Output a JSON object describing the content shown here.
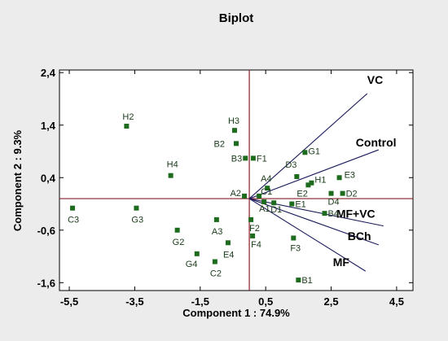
{
  "chart_data": {
    "type": "scatter",
    "title": "Biplot",
    "xlabel": "Component 1 : 74.9%",
    "ylabel": "Component 2 : 9.3%",
    "xlim": [
      -5.8,
      5.0
    ],
    "ylim": [
      -1.75,
      2.45
    ],
    "x_ticks": [
      -5.5,
      -3.5,
      -1.5,
      0.5,
      2.5,
      4.5
    ],
    "x_tick_labels": [
      "-5,5",
      "-3,5",
      "-1,5",
      "0,5",
      "2,5",
      "4,5"
    ],
    "y_ticks": [
      2.4,
      1.4,
      0.4,
      -0.6,
      -1.6
    ],
    "y_tick_labels": [
      "2,4",
      "1,4",
      "0,4",
      "-0,6",
      "-1,6"
    ],
    "grid": false,
    "origin": [
      0,
      0
    ],
    "scores": [
      {
        "label": "H2",
        "x": -3.75,
        "y": 1.38
      },
      {
        "label": "H3",
        "x": -0.45,
        "y": 1.3
      },
      {
        "label": "B2",
        "x": -0.4,
        "y": 1.05
      },
      {
        "label": "B3",
        "x": -0.12,
        "y": 0.77
      },
      {
        "label": "F1",
        "x": 0.12,
        "y": 0.77
      },
      {
        "label": "G1",
        "x": 1.7,
        "y": 0.88
      },
      {
        "label": "H4",
        "x": -2.4,
        "y": 0.44
      },
      {
        "label": "D3",
        "x": 1.45,
        "y": 0.42
      },
      {
        "label": "A4",
        "x": 0.55,
        "y": 0.2
      },
      {
        "label": "H1",
        "x": 1.9,
        "y": 0.3
      },
      {
        "label": "E3",
        "x": 2.75,
        "y": 0.4
      },
      {
        "label": "E2",
        "x": 1.8,
        "y": 0.26
      },
      {
        "label": "D4",
        "x": 2.5,
        "y": 0.1
      },
      {
        "label": "D2",
        "x": 2.85,
        "y": 0.1
      },
      {
        "label": "A2",
        "x": -0.15,
        "y": 0.05
      },
      {
        "label": "C1",
        "x": 0.3,
        "y": 0.05
      },
      {
        "label": "A1",
        "x": 0.45,
        "y": -0.06
      },
      {
        "label": "D1",
        "x": 0.75,
        "y": -0.08
      },
      {
        "label": "E1",
        "x": 1.3,
        "y": -0.1
      },
      {
        "label": "B4",
        "x": 2.3,
        "y": -0.28
      },
      {
        "label": "C3",
        "x": -5.4,
        "y": -0.18
      },
      {
        "label": "G3",
        "x": -3.45,
        "y": -0.18
      },
      {
        "label": "A3",
        "x": -1.0,
        "y": -0.4
      },
      {
        "label": "F2",
        "x": 0.05,
        "y": -0.4
      },
      {
        "label": "G2",
        "x": -2.2,
        "y": -0.6
      },
      {
        "label": "F4",
        "x": 0.1,
        "y": -0.71
      },
      {
        "label": "F3",
        "x": 1.35,
        "y": -0.75
      },
      {
        "label": "E4",
        "x": -0.65,
        "y": -0.84
      },
      {
        "label": "G4",
        "x": -1.6,
        "y": -1.05
      },
      {
        "label": "C2",
        "x": -1.05,
        "y": -1.2
      },
      {
        "label": "B1",
        "x": 1.5,
        "y": -1.55
      }
    ],
    "loadings": [
      {
        "label": "VC",
        "x": 3.6,
        "y": 2.0
      },
      {
        "label": "Control",
        "x": 3.95,
        "y": 0.93
      },
      {
        "label": "MF+VC",
        "x": 4.1,
        "y": -0.52
      },
      {
        "label": "BCh",
        "x": 3.95,
        "y": -0.88
      },
      {
        "label": "MF",
        "x": 3.55,
        "y": -1.38
      }
    ],
    "colors": {
      "points": "#1d6b1d",
      "point_labels": "#1a3a1a",
      "vectors": "#1c1c5c",
      "ref_lines": "#8a1f2a",
      "background": "#ececec"
    }
  }
}
